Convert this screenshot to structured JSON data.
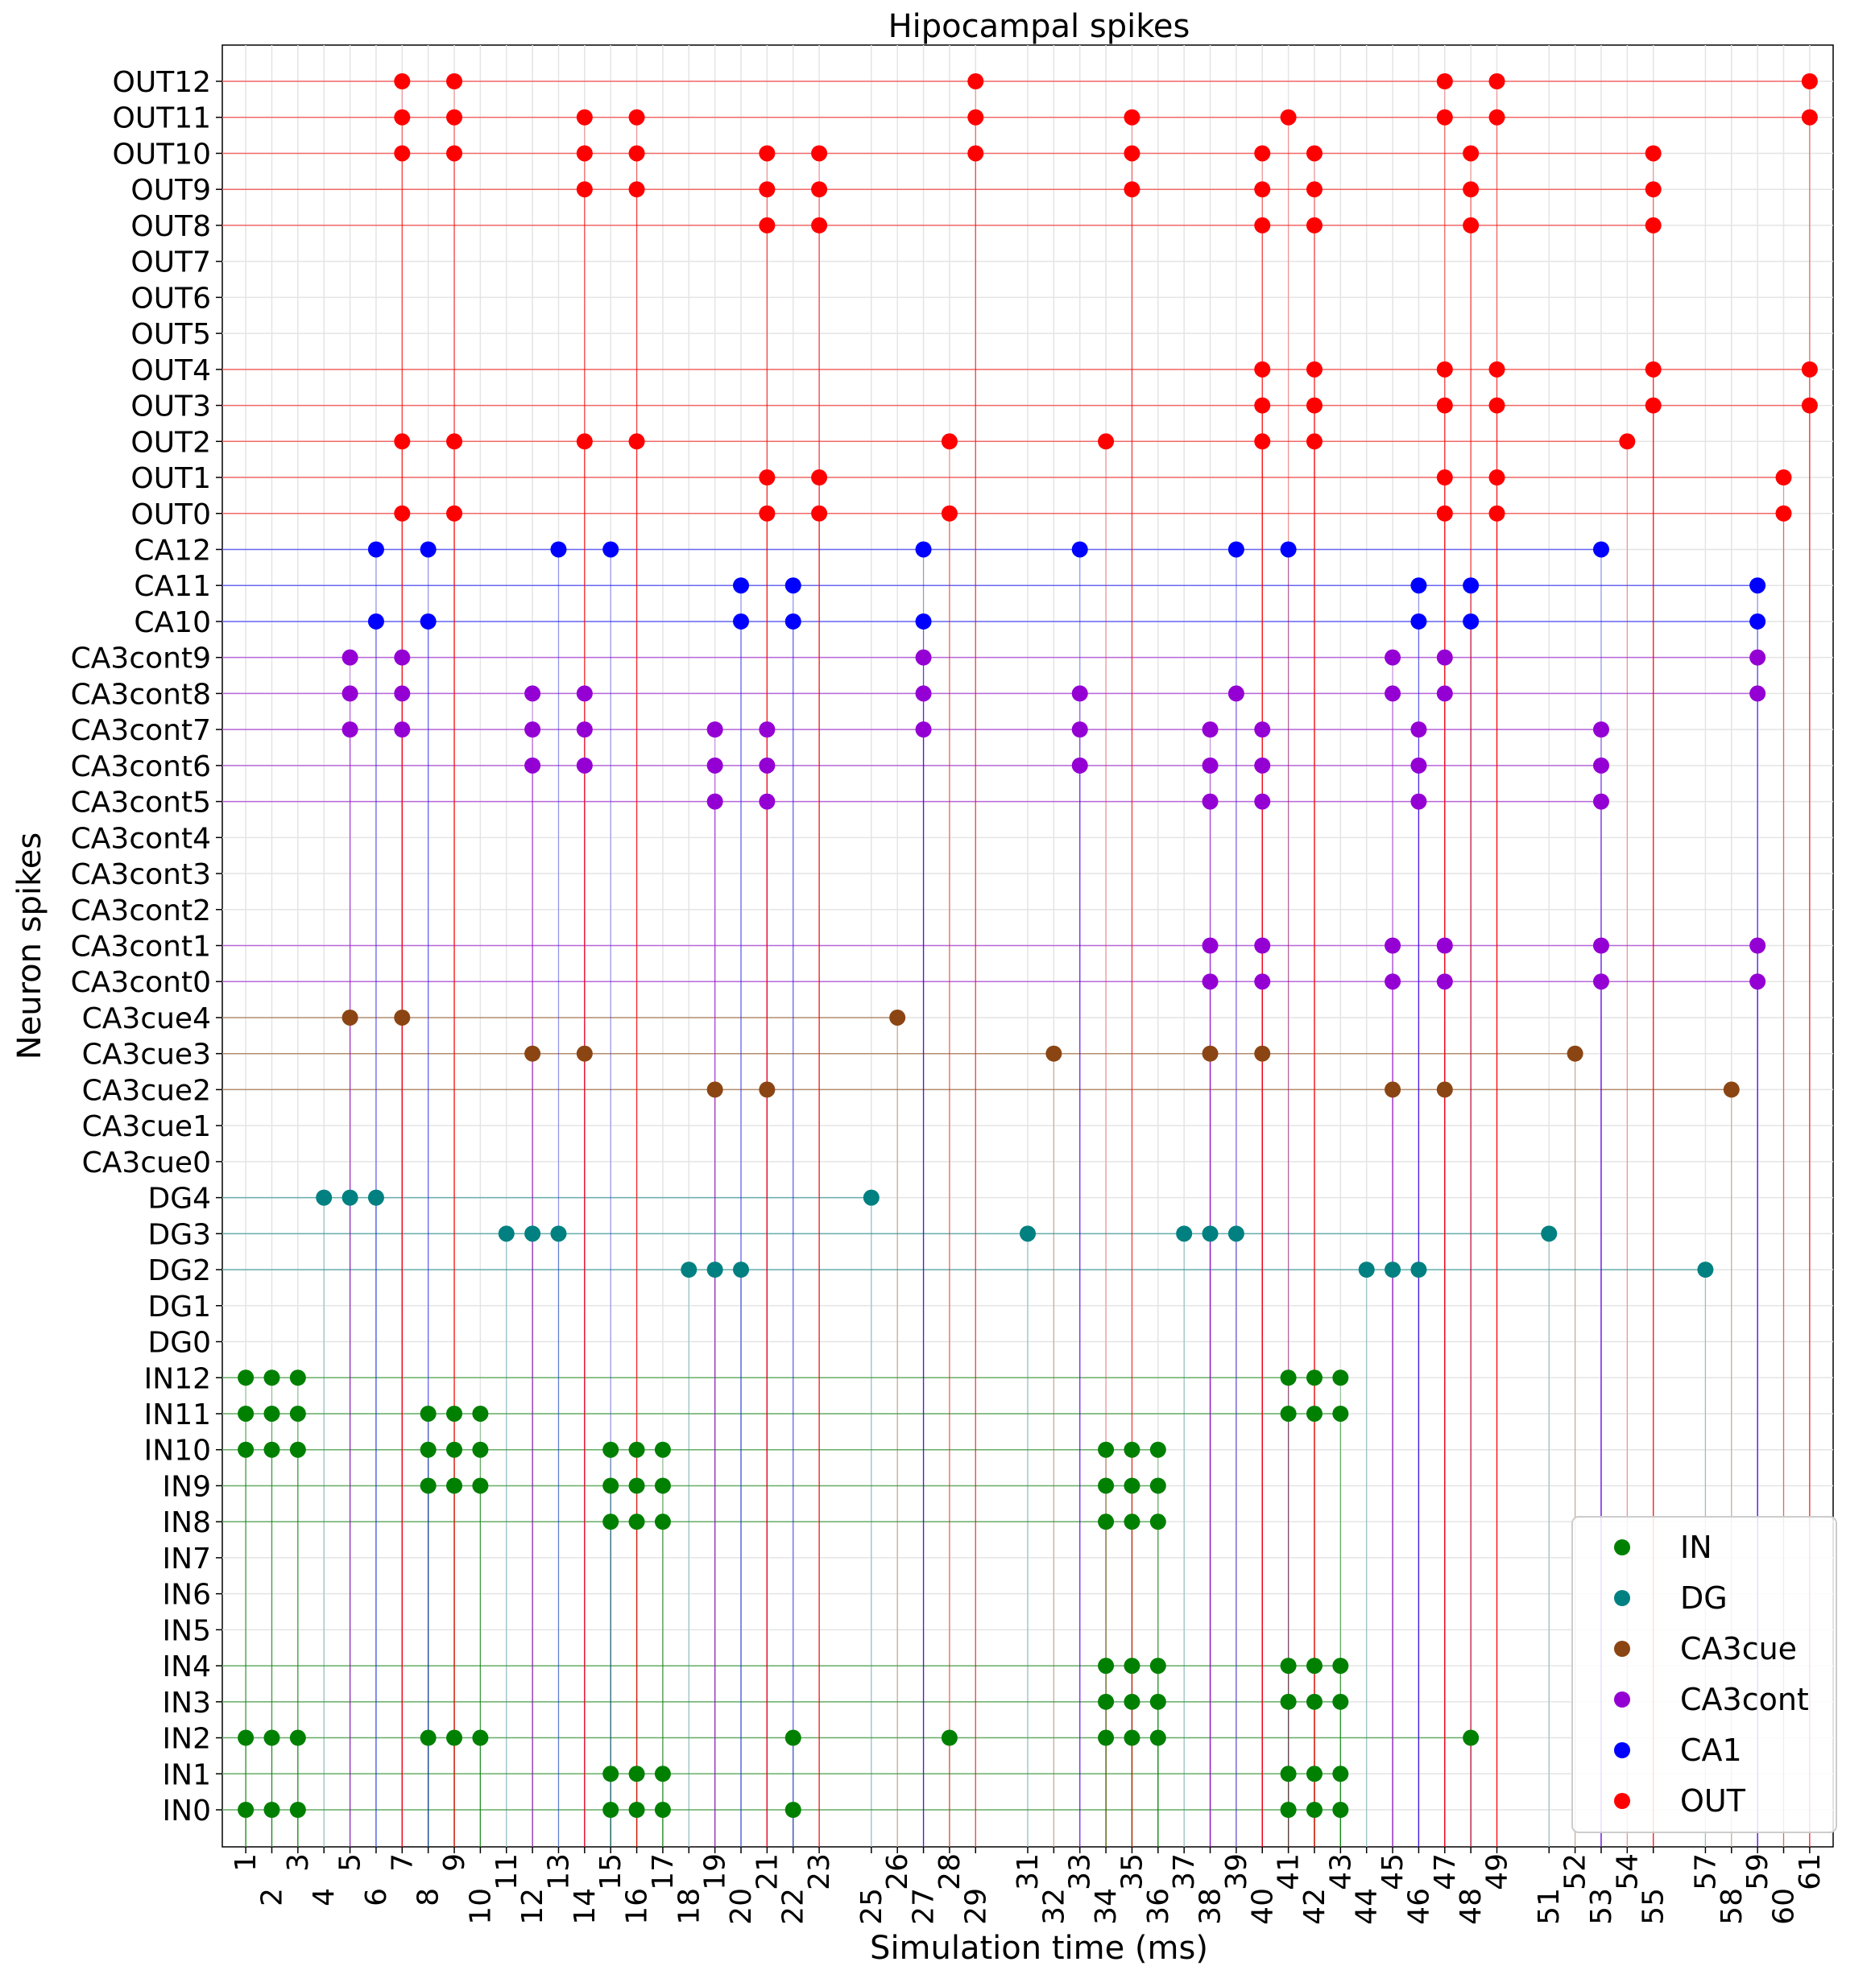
{
  "chart_data": {
    "type": "scatter",
    "title": "Hipocampal spikes",
    "xlabel": "Simulation time (ms)",
    "ylabel": "Neuron spikes",
    "xlim": [
      0.1,
      61.9
    ],
    "grid": true,
    "legend_position": "bottom-right",
    "x_ticks": [
      1,
      2,
      3,
      4,
      5,
      6,
      7,
      8,
      9,
      10,
      11,
      12,
      13,
      14,
      15,
      16,
      17,
      18,
      19,
      20,
      21,
      22,
      23,
      25,
      26,
      27,
      28,
      29,
      31,
      32,
      33,
      34,
      35,
      36,
      37,
      38,
      39,
      40,
      41,
      42,
      43,
      44,
      45,
      46,
      47,
      48,
      49,
      51,
      52,
      53,
      54,
      55,
      57,
      58,
      59,
      60,
      61
    ],
    "y_labels": [
      "IN0",
      "IN1",
      "IN2",
      "IN3",
      "IN4",
      "IN5",
      "IN6",
      "IN7",
      "IN8",
      "IN9",
      "IN10",
      "IN11",
      "IN12",
      "DG0",
      "DG1",
      "DG2",
      "DG3",
      "DG4",
      "CA3cue0",
      "CA3cue1",
      "CA3cue2",
      "CA3cue3",
      "CA3cue4",
      "CA3cont0",
      "CA3cont1",
      "CA3cont2",
      "CA3cont3",
      "CA3cont4",
      "CA3cont5",
      "CA3cont6",
      "CA3cont7",
      "CA3cont8",
      "CA3cont9",
      "CA10",
      "CA11",
      "CA12",
      "OUT0",
      "OUT1",
      "OUT2",
      "OUT3",
      "OUT4",
      "OUT5",
      "OUT6",
      "OUT7",
      "OUT8",
      "OUT9",
      "OUT10",
      "OUT11",
      "OUT12"
    ],
    "series": [
      {
        "name": "IN",
        "color": "#008000",
        "points": [
          [
            1,
            0
          ],
          [
            2,
            0
          ],
          [
            3,
            0
          ],
          [
            15,
            0
          ],
          [
            16,
            0
          ],
          [
            17,
            0
          ],
          [
            22,
            0
          ],
          [
            41,
            0
          ],
          [
            42,
            0
          ],
          [
            43,
            0
          ],
          [
            15,
            1
          ],
          [
            16,
            1
          ],
          [
            17,
            1
          ],
          [
            41,
            1
          ],
          [
            42,
            1
          ],
          [
            43,
            1
          ],
          [
            1,
            2
          ],
          [
            2,
            2
          ],
          [
            3,
            2
          ],
          [
            8,
            2
          ],
          [
            9,
            2
          ],
          [
            10,
            2
          ],
          [
            22,
            2
          ],
          [
            28,
            2
          ],
          [
            34,
            2
          ],
          [
            35,
            2
          ],
          [
            36,
            2
          ],
          [
            48,
            2
          ],
          [
            34,
            3
          ],
          [
            35,
            3
          ],
          [
            36,
            3
          ],
          [
            41,
            3
          ],
          [
            42,
            3
          ],
          [
            43,
            3
          ],
          [
            34,
            4
          ],
          [
            35,
            4
          ],
          [
            36,
            4
          ],
          [
            41,
            4
          ],
          [
            42,
            4
          ],
          [
            43,
            4
          ],
          [
            15,
            8
          ],
          [
            16,
            8
          ],
          [
            17,
            8
          ],
          [
            34,
            8
          ],
          [
            35,
            8
          ],
          [
            36,
            8
          ],
          [
            8,
            9
          ],
          [
            9,
            9
          ],
          [
            10,
            9
          ],
          [
            15,
            9
          ],
          [
            16,
            9
          ],
          [
            17,
            9
          ],
          [
            34,
            9
          ],
          [
            35,
            9
          ],
          [
            36,
            9
          ],
          [
            1,
            10
          ],
          [
            2,
            10
          ],
          [
            3,
            10
          ],
          [
            8,
            10
          ],
          [
            9,
            10
          ],
          [
            10,
            10
          ],
          [
            15,
            10
          ],
          [
            16,
            10
          ],
          [
            17,
            10
          ],
          [
            34,
            10
          ],
          [
            35,
            10
          ],
          [
            36,
            10
          ],
          [
            1,
            11
          ],
          [
            2,
            11
          ],
          [
            3,
            11
          ],
          [
            8,
            11
          ],
          [
            9,
            11
          ],
          [
            10,
            11
          ],
          [
            41,
            11
          ],
          [
            42,
            11
          ],
          [
            43,
            11
          ],
          [
            1,
            12
          ],
          [
            2,
            12
          ],
          [
            3,
            12
          ],
          [
            41,
            12
          ],
          [
            42,
            12
          ],
          [
            43,
            12
          ]
        ]
      },
      {
        "name": "DG",
        "color": "#008080",
        "points": [
          [
            18,
            15
          ],
          [
            19,
            15
          ],
          [
            20,
            15
          ],
          [
            44,
            15
          ],
          [
            45,
            15
          ],
          [
            46,
            15
          ],
          [
            57,
            15
          ],
          [
            11,
            16
          ],
          [
            12,
            16
          ],
          [
            13,
            16
          ],
          [
            31,
            16
          ],
          [
            37,
            16
          ],
          [
            38,
            16
          ],
          [
            39,
            16
          ],
          [
            51,
            16
          ],
          [
            4,
            17
          ],
          [
            5,
            17
          ],
          [
            6,
            17
          ],
          [
            25,
            17
          ]
        ]
      },
      {
        "name": "CA3cue",
        "color": "#8B4513",
        "points": [
          [
            19,
            20
          ],
          [
            21,
            20
          ],
          [
            45,
            20
          ],
          [
            47,
            20
          ],
          [
            58,
            20
          ],
          [
            12,
            21
          ],
          [
            14,
            21
          ],
          [
            32,
            21
          ],
          [
            38,
            21
          ],
          [
            40,
            21
          ],
          [
            52,
            21
          ],
          [
            5,
            22
          ],
          [
            7,
            22
          ],
          [
            26,
            22
          ]
        ]
      },
      {
        "name": "CA3cont",
        "color": "#9400D3",
        "points": [
          [
            38,
            23
          ],
          [
            40,
            23
          ],
          [
            45,
            23
          ],
          [
            47,
            23
          ],
          [
            53,
            23
          ],
          [
            59,
            23
          ],
          [
            38,
            24
          ],
          [
            40,
            24
          ],
          [
            45,
            24
          ],
          [
            47,
            24
          ],
          [
            53,
            24
          ],
          [
            59,
            24
          ],
          [
            19,
            28
          ],
          [
            21,
            28
          ],
          [
            38,
            28
          ],
          [
            40,
            28
          ],
          [
            46,
            28
          ],
          [
            53,
            28
          ],
          [
            12,
            29
          ],
          [
            14,
            29
          ],
          [
            19,
            29
          ],
          [
            21,
            29
          ],
          [
            33,
            29
          ],
          [
            38,
            29
          ],
          [
            40,
            29
          ],
          [
            46,
            29
          ],
          [
            53,
            29
          ],
          [
            5,
            30
          ],
          [
            7,
            30
          ],
          [
            12,
            30
          ],
          [
            14,
            30
          ],
          [
            19,
            30
          ],
          [
            21,
            30
          ],
          [
            27,
            30
          ],
          [
            33,
            30
          ],
          [
            38,
            30
          ],
          [
            40,
            30
          ],
          [
            46,
            30
          ],
          [
            53,
            30
          ],
          [
            5,
            31
          ],
          [
            7,
            31
          ],
          [
            12,
            31
          ],
          [
            14,
            31
          ],
          [
            27,
            31
          ],
          [
            33,
            31
          ],
          [
            39,
            31
          ],
          [
            45,
            31
          ],
          [
            47,
            31
          ],
          [
            59,
            31
          ],
          [
            5,
            32
          ],
          [
            7,
            32
          ],
          [
            27,
            32
          ],
          [
            45,
            32
          ],
          [
            47,
            32
          ],
          [
            59,
            32
          ]
        ]
      },
      {
        "name": "CA1",
        "color": "#0000FF",
        "points": [
          [
            6,
            33
          ],
          [
            8,
            33
          ],
          [
            20,
            33
          ],
          [
            22,
            33
          ],
          [
            27,
            33
          ],
          [
            46,
            33
          ],
          [
            48,
            33
          ],
          [
            59,
            33
          ],
          [
            20,
            34
          ],
          [
            22,
            34
          ],
          [
            46,
            34
          ],
          [
            48,
            34
          ],
          [
            59,
            34
          ],
          [
            6,
            35
          ],
          [
            8,
            35
          ],
          [
            13,
            35
          ],
          [
            15,
            35
          ],
          [
            27,
            35
          ],
          [
            33,
            35
          ],
          [
            39,
            35
          ],
          [
            41,
            35
          ],
          [
            53,
            35
          ]
        ]
      },
      {
        "name": "OUT",
        "color": "#FF0000",
        "points": [
          [
            7,
            36
          ],
          [
            9,
            36
          ],
          [
            21,
            36
          ],
          [
            23,
            36
          ],
          [
            28,
            36
          ],
          [
            47,
            36
          ],
          [
            49,
            36
          ],
          [
            60,
            36
          ],
          [
            21,
            37
          ],
          [
            23,
            37
          ],
          [
            47,
            37
          ],
          [
            49,
            37
          ],
          [
            60,
            37
          ],
          [
            7,
            38
          ],
          [
            9,
            38
          ],
          [
            14,
            38
          ],
          [
            16,
            38
          ],
          [
            28,
            38
          ],
          [
            34,
            38
          ],
          [
            40,
            38
          ],
          [
            42,
            38
          ],
          [
            54,
            38
          ],
          [
            40,
            39
          ],
          [
            42,
            39
          ],
          [
            47,
            39
          ],
          [
            49,
            39
          ],
          [
            55,
            39
          ],
          [
            61,
            39
          ],
          [
            40,
            40
          ],
          [
            42,
            40
          ],
          [
            47,
            40
          ],
          [
            49,
            40
          ],
          [
            55,
            40
          ],
          [
            61,
            40
          ],
          [
            21,
            44
          ],
          [
            23,
            44
          ],
          [
            40,
            44
          ],
          [
            42,
            44
          ],
          [
            48,
            44
          ],
          [
            55,
            44
          ],
          [
            14,
            45
          ],
          [
            16,
            45
          ],
          [
            21,
            45
          ],
          [
            23,
            45
          ],
          [
            35,
            45
          ],
          [
            40,
            45
          ],
          [
            42,
            45
          ],
          [
            48,
            45
          ],
          [
            55,
            45
          ],
          [
            7,
            46
          ],
          [
            9,
            46
          ],
          [
            14,
            46
          ],
          [
            16,
            46
          ],
          [
            21,
            46
          ],
          [
            23,
            46
          ],
          [
            29,
            46
          ],
          [
            35,
            46
          ],
          [
            40,
            46
          ],
          [
            42,
            46
          ],
          [
            48,
            46
          ],
          [
            55,
            46
          ],
          [
            7,
            47
          ],
          [
            9,
            47
          ],
          [
            14,
            47
          ],
          [
            16,
            47
          ],
          [
            29,
            47
          ],
          [
            35,
            47
          ],
          [
            41,
            47
          ],
          [
            47,
            47
          ],
          [
            49,
            47
          ],
          [
            61,
            47
          ],
          [
            7,
            48
          ],
          [
            9,
            48
          ],
          [
            29,
            48
          ],
          [
            47,
            48
          ],
          [
            49,
            48
          ],
          [
            61,
            48
          ]
        ]
      }
    ]
  }
}
